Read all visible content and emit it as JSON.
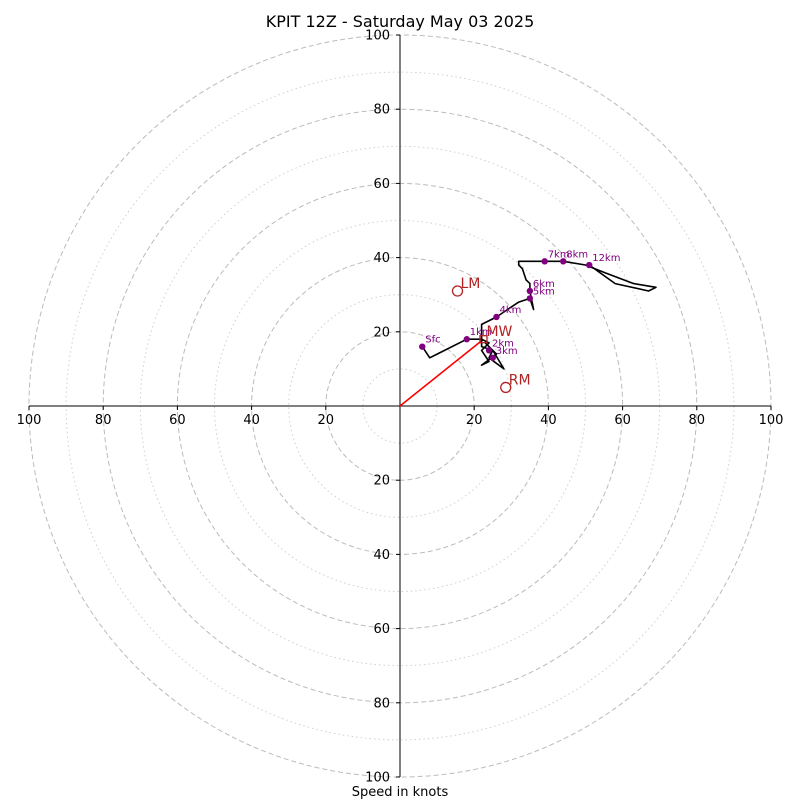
{
  "chart_data": {
    "type": "line",
    "title": "KPIT 12Z - Saturday May 03 2025",
    "xlabel": "Speed in knots",
    "ylabel": "",
    "xlim": [
      -100,
      100
    ],
    "ylim": [
      -100,
      100
    ],
    "rings_major": [
      20,
      40,
      60,
      80,
      100
    ],
    "rings_minor": [
      10,
      30,
      50,
      70,
      90
    ],
    "ticks": {
      "right": [
        {
          "v": 20,
          "label": "20"
        },
        {
          "v": 40,
          "label": "40"
        },
        {
          "v": 60,
          "label": "60"
        },
        {
          "v": 80,
          "label": "80"
        },
        {
          "v": 100,
          "label": "100"
        }
      ],
      "left": [
        {
          "v": 20,
          "label": "20"
        },
        {
          "v": 40,
          "label": "40"
        },
        {
          "v": 60,
          "label": "60"
        },
        {
          "v": 80,
          "label": "80"
        },
        {
          "v": 100,
          "label": "100"
        }
      ],
      "up": [
        {
          "v": 20,
          "label": "20"
        },
        {
          "v": 40,
          "label": "40"
        },
        {
          "v": 60,
          "label": "60"
        },
        {
          "v": 80,
          "label": "80"
        },
        {
          "v": 100,
          "label": "100"
        }
      ],
      "down": [
        {
          "v": 20,
          "label": "20"
        },
        {
          "v": 40,
          "label": "40"
        },
        {
          "v": 60,
          "label": "60"
        },
        {
          "v": 80,
          "label": "80"
        },
        {
          "v": 100,
          "label": "100"
        }
      ]
    },
    "hodograph": [
      [
        6,
        16
      ],
      [
        8,
        13
      ],
      [
        10,
        14
      ],
      [
        18,
        18
      ],
      [
        22,
        18
      ],
      [
        24,
        17
      ],
      [
        22,
        15
      ],
      [
        24,
        12
      ],
      [
        22,
        11
      ],
      [
        26,
        14
      ],
      [
        23,
        17
      ],
      [
        25,
        15
      ],
      [
        28,
        10
      ],
      [
        24,
        13
      ],
      [
        25,
        15
      ],
      [
        22,
        16
      ],
      [
        22,
        22
      ],
      [
        26,
        24
      ],
      [
        29,
        26
      ],
      [
        32,
        28
      ],
      [
        35,
        29
      ],
      [
        36,
        26
      ],
      [
        35,
        31
      ],
      [
        35,
        33
      ],
      [
        34,
        34
      ],
      [
        33,
        37
      ],
      [
        32,
        38
      ],
      [
        32,
        39
      ],
      [
        39,
        39
      ],
      [
        44,
        39
      ],
      [
        50,
        38
      ],
      [
        55,
        36
      ],
      [
        63,
        33
      ],
      [
        69,
        32
      ],
      [
        67,
        31
      ],
      [
        58,
        33
      ],
      [
        51,
        38
      ]
    ],
    "height_points": [
      {
        "label": "Sfc",
        "x": 6,
        "y": 16
      },
      {
        "label": "1km",
        "x": 18,
        "y": 18
      },
      {
        "label": "2km",
        "x": 24,
        "y": 15
      },
      {
        "label": "3km",
        "x": 25,
        "y": 13
      },
      {
        "label": "4km",
        "x": 26,
        "y": 24
      },
      {
        "label": "5km",
        "x": 35,
        "y": 29
      },
      {
        "label": "6km",
        "x": 35,
        "y": 31
      },
      {
        "label": "7km",
        "x": 39,
        "y": 39
      },
      {
        "label": "8km",
        "x": 44,
        "y": 39
      },
      {
        "label": "12km",
        "x": 51,
        "y": 38
      }
    ],
    "motions": [
      {
        "label": "LM",
        "x": 15.5,
        "y": 31,
        "marker": "circle"
      },
      {
        "label": "RM",
        "x": 28.5,
        "y": 5,
        "marker": "circle"
      },
      {
        "label": "MW",
        "x": 22.5,
        "y": 18,
        "marker": "square"
      }
    ],
    "mean_wind_vector": {
      "x": 22.5,
      "y": 18
    },
    "colors": {
      "hodograph": "#000000",
      "height_points": "#800080",
      "motions": "#b22222",
      "vector": "#ff0000",
      "rings": "#bbbbbb"
    }
  }
}
